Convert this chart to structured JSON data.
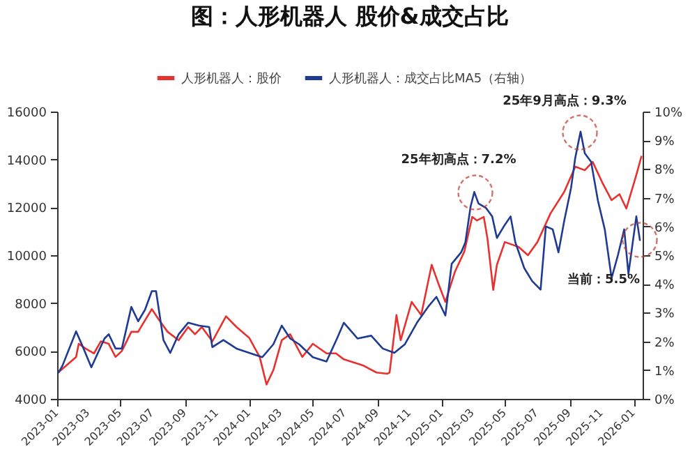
{
  "chart_data": {
    "type": "line",
    "title": "图：人形机器人 股价&成交占比",
    "xlim": [
      "2023-01-01",
      "2026-01-18"
    ],
    "xticks": [
      "2023-01",
      "2023-03",
      "2023-05",
      "2023-07",
      "2023-09",
      "2023-11",
      "2024-01",
      "2024-03",
      "2024-05",
      "2024-07",
      "2024-09",
      "2024-11",
      "2025-01",
      "2025-03",
      "2025-05",
      "2025-07",
      "2025-09",
      "2025-11",
      "2026-01"
    ],
    "ylim": [
      4000,
      16000
    ],
    "yticks": [
      4000,
      6000,
      8000,
      10000,
      12000,
      14000,
      16000
    ],
    "y2lim": [
      0,
      10
    ],
    "y2ticks": [
      {
        "value": 0,
        "label": "0%"
      },
      {
        "value": 1,
        "label": "1%"
      },
      {
        "value": 2,
        "label": "2%"
      },
      {
        "value": 3,
        "label": "3%"
      },
      {
        "value": 4,
        "label": "4%"
      },
      {
        "value": 5,
        "label": "5%"
      },
      {
        "value": 6,
        "label": "6%"
      },
      {
        "value": 7,
        "label": "7%"
      },
      {
        "value": 8,
        "label": "8%"
      },
      {
        "value": 9,
        "label": "9%"
      },
      {
        "value": 10,
        "label": "10%"
      }
    ],
    "legend": "top",
    "grid": false,
    "series": [
      {
        "name": "人形机器人：股价",
        "color": "#e8312f",
        "x": [
          "2023-01-03",
          "2023-02-06",
          "2023-02-11",
          "2023-02-24",
          "2023-03-12",
          "2023-03-25",
          "2023-04-09",
          "2023-04-22",
          "2023-05-04",
          "2023-05-22",
          "2023-06-04",
          "2023-06-12",
          "2023-06-30",
          "2023-07-12",
          "2023-07-30",
          "2023-08-20",
          "2023-09-07",
          "2023-09-20",
          "2023-10-03",
          "2023-10-23",
          "2023-11-18",
          "2023-12-08",
          "2024-01-01",
          "2024-01-21",
          "2024-02-03",
          "2024-02-16",
          "2024-03-03",
          "2024-03-19",
          "2024-04-11",
          "2024-05-01",
          "2024-05-27",
          "2024-06-14",
          "2024-06-29",
          "2024-08-04",
          "2024-08-30",
          "2024-09-20",
          "2024-09-24",
          "2024-10-07",
          "2024-10-15",
          "2024-11-05",
          "2024-11-23",
          "2024-12-13",
          "2024-12-26",
          "2025-01-08",
          "2025-01-26",
          "2025-02-13",
          "2025-02-28",
          "2025-03-09",
          "2025-03-22",
          "2025-03-29",
          "2025-04-09",
          "2025-04-16",
          "2025-05-01",
          "2025-05-27",
          "2025-06-14",
          "2025-07-02",
          "2025-07-27",
          "2025-08-22",
          "2025-09-12",
          "2025-09-30",
          "2025-10-15",
          "2025-11-02",
          "2025-11-20",
          "2025-12-05",
          "2025-12-18",
          "2026-01-06",
          "2026-01-16"
        ],
        "values": [
          5100,
          5750,
          6300,
          6100,
          5900,
          6400,
          6300,
          5750,
          6000,
          6800,
          6800,
          7100,
          7750,
          7350,
          6800,
          6450,
          7000,
          6700,
          7000,
          6400,
          7450,
          7000,
          6550,
          5750,
          4600,
          5200,
          6450,
          6700,
          5750,
          6300,
          5900,
          5900,
          5650,
          5400,
          5100,
          5050,
          5100,
          7500,
          6450,
          8050,
          7500,
          9600,
          8800,
          8050,
          9300,
          10150,
          11600,
          11450,
          11600,
          10700,
          8550,
          9600,
          10550,
          10350,
          10000,
          10550,
          11750,
          12650,
          13700,
          13550,
          13900,
          13050,
          12300,
          12550,
          11950,
          13350,
          14150
        ]
      },
      {
        "name": "人形机器人：成交占比MA5（右轴）",
        "color": "#1f3a93",
        "axis": "y2",
        "x": [
          "2023-01-03",
          "2023-01-11",
          "2023-02-06",
          "2023-02-19",
          "2023-03-07",
          "2023-04-01",
          "2023-04-09",
          "2023-04-22",
          "2023-05-04",
          "2023-05-22",
          "2023-06-04",
          "2023-06-17",
          "2023-06-30",
          "2023-07-08",
          "2023-07-22",
          "2023-08-04",
          "2023-08-20",
          "2023-09-07",
          "2023-09-28",
          "2023-10-17",
          "2023-10-23",
          "2023-11-13",
          "2023-12-08",
          "2024-01-01",
          "2024-01-26",
          "2024-02-16",
          "2024-03-03",
          "2024-03-19",
          "2024-04-05",
          "2024-05-01",
          "2024-05-27",
          "2024-06-16",
          "2024-06-29",
          "2024-07-25",
          "2024-08-20",
          "2024-09-11",
          "2024-10-03",
          "2024-10-23",
          "2024-11-15",
          "2024-12-06",
          "2024-12-22",
          "2025-01-08",
          "2025-01-20",
          "2025-02-07",
          "2025-02-15",
          "2025-02-25",
          "2025-03-04",
          "2025-03-12",
          "2025-03-26",
          "2025-04-07",
          "2025-04-16",
          "2025-04-29",
          "2025-05-12",
          "2025-05-21",
          "2025-06-07",
          "2025-06-22",
          "2025-07-08",
          "2025-07-18",
          "2025-07-31",
          "2025-08-11",
          "2025-08-22",
          "2025-09-04",
          "2025-09-12",
          "2025-09-22",
          "2025-09-30",
          "2025-10-12",
          "2025-10-25",
          "2025-11-07",
          "2025-11-20",
          "2025-12-02",
          "2025-12-14",
          "2025-12-22",
          "2026-01-06",
          "2026-01-13"
        ],
        "values": [
          0.9,
          1.15,
          2.35,
          1.8,
          1.1,
          2.1,
          2.25,
          1.75,
          1.75,
          3.2,
          2.7,
          3.1,
          3.75,
          3.75,
          2.05,
          1.6,
          2.25,
          2.65,
          2.55,
          2.5,
          1.8,
          2.05,
          1.75,
          1.6,
          1.45,
          1.9,
          2.55,
          2.1,
          1.9,
          1.45,
          1.3,
          2.1,
          2.65,
          2.1,
          2.2,
          1.75,
          1.6,
          1.9,
          2.65,
          3.2,
          3.55,
          2.9,
          4.7,
          5.1,
          5.45,
          6.7,
          7.2,
          6.8,
          6.65,
          6.35,
          5.6,
          6.0,
          6.35,
          5.45,
          4.55,
          4.1,
          3.8,
          6.0,
          5.9,
          5.1,
          6.2,
          7.35,
          8.4,
          9.3,
          8.55,
          8.25,
          6.9,
          5.9,
          4.2,
          5.0,
          5.9,
          4.35,
          6.35,
          5.5
        ]
      }
    ],
    "annotations": [
      "25年初高点：7.2%",
      "25年9月高点：9.3%",
      "当前：5.5%"
    ]
  }
}
